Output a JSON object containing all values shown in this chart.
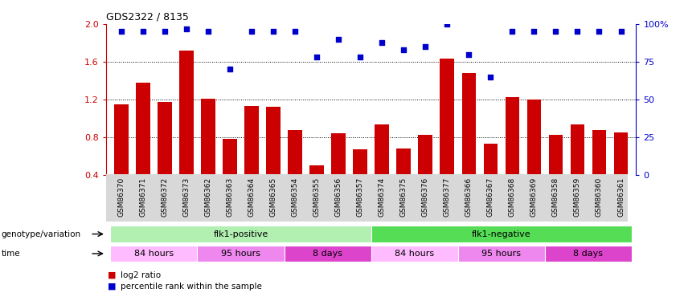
{
  "title": "GDS2322 / 8135",
  "samples": [
    "GSM86370",
    "GSM86371",
    "GSM86372",
    "GSM86373",
    "GSM86362",
    "GSM86363",
    "GSM86364",
    "GSM86365",
    "GSM86354",
    "GSM86355",
    "GSM86356",
    "GSM86357",
    "GSM86374",
    "GSM86375",
    "GSM86376",
    "GSM86377",
    "GSM86366",
    "GSM86367",
    "GSM86368",
    "GSM86369",
    "GSM86358",
    "GSM86359",
    "GSM86360",
    "GSM86361"
  ],
  "log2_values": [
    1.15,
    1.38,
    1.17,
    1.72,
    1.21,
    0.78,
    1.13,
    1.12,
    0.87,
    0.5,
    0.84,
    0.67,
    0.93,
    0.68,
    0.82,
    1.63,
    1.48,
    0.73,
    1.22,
    1.2,
    0.82,
    0.93,
    0.87,
    0.85
  ],
  "percentile_values": [
    95,
    95,
    95,
    97,
    95,
    70,
    95,
    95,
    95,
    78,
    90,
    78,
    88,
    83,
    85,
    100,
    80,
    65,
    95,
    95,
    95,
    95,
    95,
    95
  ],
  "bar_color": "#cc0000",
  "dot_color": "#0000cc",
  "ylim_left": [
    0.4,
    2.0
  ],
  "ylim_right": [
    0,
    100
  ],
  "yticks_left": [
    0.4,
    0.8,
    1.2,
    1.6,
    2.0
  ],
  "yticks_right": [
    0,
    25,
    50,
    75,
    100
  ],
  "ytick_labels_right": [
    "0",
    "25",
    "50",
    "75",
    "100%"
  ],
  "hlines": [
    0.8,
    1.2,
    1.6
  ],
  "genotype_groups": [
    {
      "text": "flk1-positive",
      "start": 0,
      "end": 11,
      "color": "#b2f0b2"
    },
    {
      "text": "flk1-negative",
      "start": 12,
      "end": 23,
      "color": "#55dd55"
    }
  ],
  "time_groups": [
    {
      "text": "84 hours",
      "start": 0,
      "end": 3,
      "color": "#ffbbff"
    },
    {
      "text": "95 hours",
      "start": 4,
      "end": 7,
      "color": "#ee88ee"
    },
    {
      "text": "8 days",
      "start": 8,
      "end": 11,
      "color": "#dd44cc"
    },
    {
      "text": "84 hours",
      "start": 12,
      "end": 15,
      "color": "#ffbbff"
    },
    {
      "text": "95 hours",
      "start": 16,
      "end": 19,
      "color": "#ee88ee"
    },
    {
      "text": "8 days",
      "start": 20,
      "end": 23,
      "color": "#dd44cc"
    }
  ],
  "legend_items": [
    {
      "label": "log2 ratio",
      "color": "#cc0000"
    },
    {
      "label": "percentile rank within the sample",
      "color": "#0000cc"
    }
  ]
}
